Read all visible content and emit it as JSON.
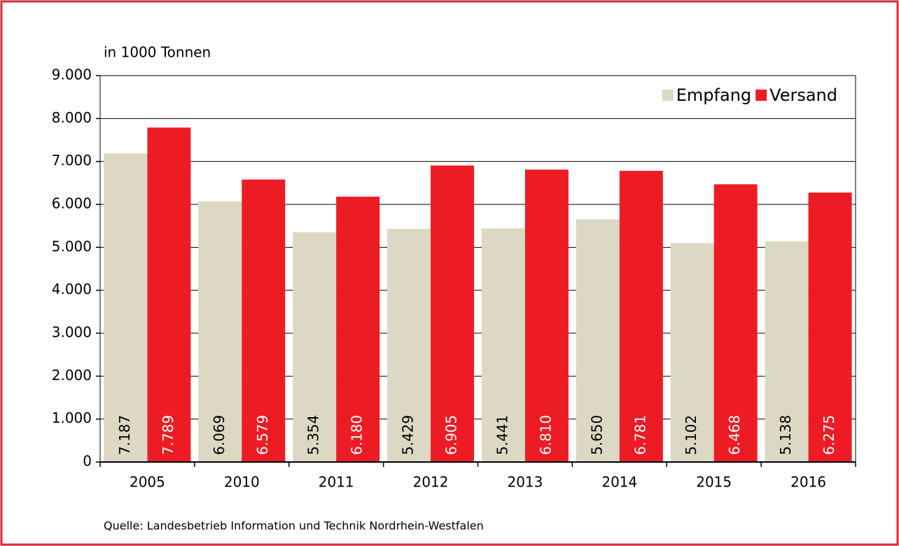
{
  "chart_data": {
    "type": "bar",
    "y_axis_label": "in 1000 Tonnen",
    "source": "Quelle: Landesbetrieb Information und Technik Nordrhein-Westfalen",
    "categories": [
      "2005",
      "2010",
      "2011",
      "2012",
      "2013",
      "2014",
      "2015",
      "2016"
    ],
    "series": [
      {
        "name": "Empfang",
        "color": "#dcd8c3",
        "label_color": "#000000",
        "values": [
          7187,
          6069,
          5354,
          5429,
          5441,
          5650,
          5102,
          5138
        ],
        "value_labels": [
          "7.187",
          "6.069",
          "5.354",
          "5.429",
          "5.441",
          "5.650",
          "5.102",
          "5.138"
        ]
      },
      {
        "name": "Versand",
        "color": "#ed1c24",
        "label_color": "#ffffff",
        "values": [
          7789,
          6579,
          6180,
          6905,
          6810,
          6781,
          6468,
          6275
        ],
        "value_labels": [
          "7.789",
          "6.579",
          "6.180",
          "6.905",
          "6.810",
          "6.781",
          "6.468",
          "6.275"
        ]
      }
    ],
    "ylim": [
      0,
      9000
    ],
    "yticks": [
      0,
      {
        "value": 1000,
        "label": "1.000"
      },
      {
        "value": 2000,
        "label": "2.000"
      },
      {
        "value": 3000,
        "label": "3.000"
      },
      {
        "value": 4000,
        "label": "4.000"
      },
      {
        "value": 5000,
        "label": "5.000"
      },
      {
        "value": 6000,
        "label": "6.000"
      },
      {
        "value": 7000,
        "label": "7.000"
      },
      {
        "value": 8000,
        "label": "8.000"
      },
      {
        "value": 9000,
        "label": "9.000"
      }
    ],
    "grid": true,
    "legend": "top-right"
  }
}
